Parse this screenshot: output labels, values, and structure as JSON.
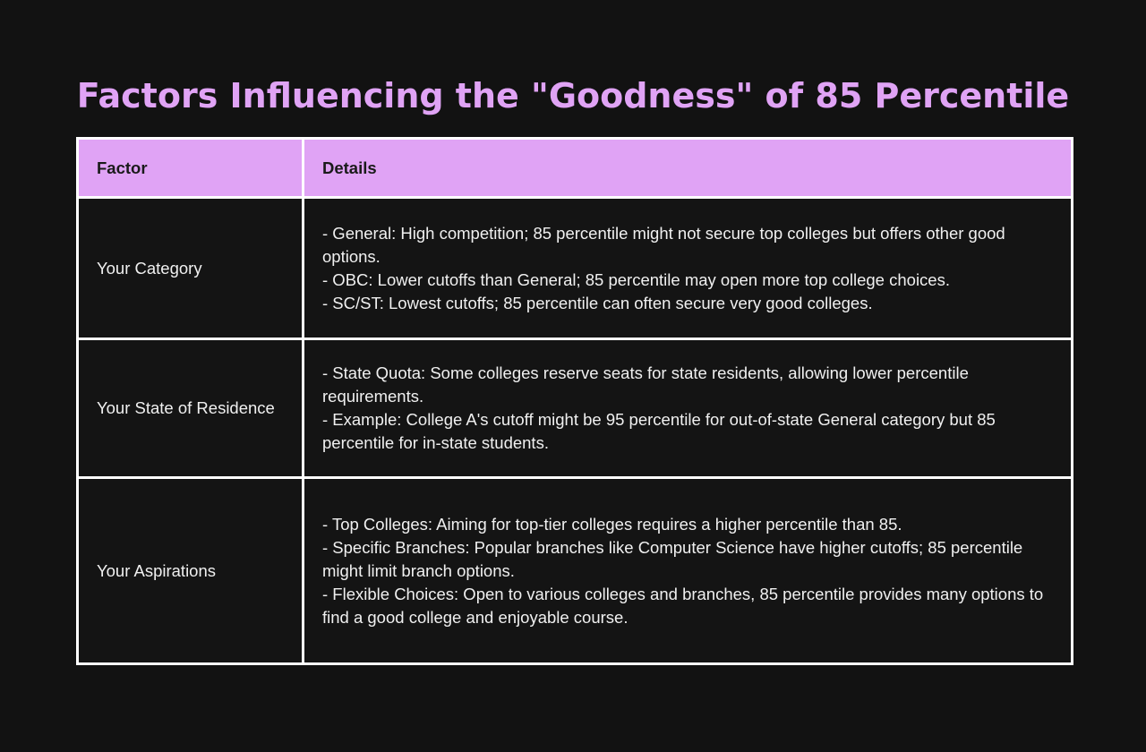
{
  "title": "Factors Influencing the \"Goodness\" of 85 Percentile",
  "table": {
    "headers": [
      "Factor",
      "Details"
    ],
    "rows": [
      {
        "factor": "Your Category",
        "details": [
          "- General: High competition; 85 percentile might not secure top colleges but offers other good options.",
          "- OBC: Lower cutoffs than General; 85 percentile may open more top college choices.",
          "- SC/ST: Lowest cutoffs; 85 percentile can often secure very good colleges."
        ]
      },
      {
        "factor": "Your State of Residence",
        "details": [
          "- State Quota: Some colleges reserve seats for state residents, allowing lower percentile requirements.",
          "- Example: College A's cutoff might be 95 percentile for out-of-state General category but 85 percentile for in-state students."
        ]
      },
      {
        "factor": "Your Aspirations",
        "details": [
          "- Top Colleges: Aiming for top-tier colleges requires a higher percentile than 85.",
          "- Specific Branches: Popular branches like Computer Science have higher cutoffs; 85 percentile might limit branch options.",
          "- Flexible Choices: Open to various colleges and branches, 85 percentile provides many options to find a good college and enjoyable course."
        ]
      }
    ]
  },
  "colors": {
    "background": "#121212",
    "accent": "#e0a3f5",
    "border": "#ffffff",
    "text": "#f0f0f0"
  }
}
